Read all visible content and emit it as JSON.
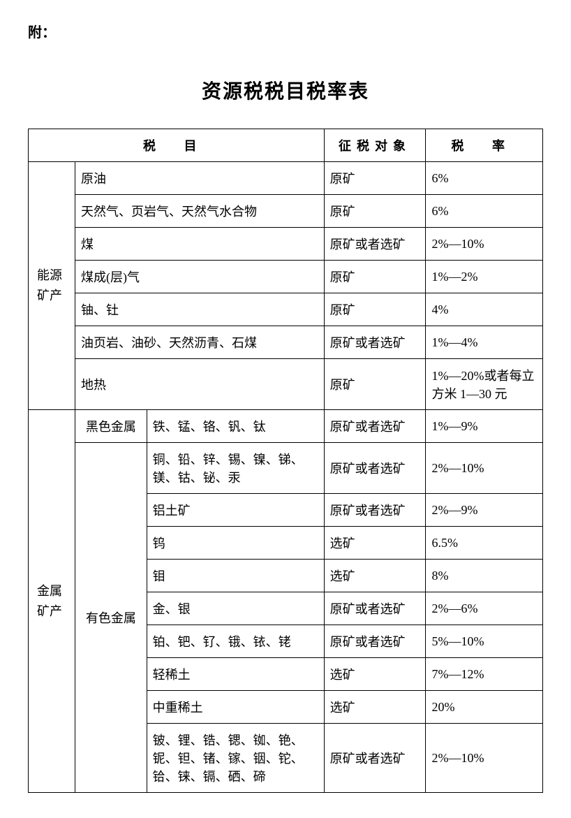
{
  "attachment_label": "附：",
  "title": "资源税税目税率表",
  "headers": {
    "item": "税 目",
    "object": "征税对象",
    "rate": "税 率"
  },
  "categories": {
    "energy": "能源矿产",
    "metal": "金属矿产",
    "black_metal": "黑色金属",
    "nonferrous_metal": "有色金属"
  },
  "rows": {
    "r1": {
      "item": "原油",
      "obj": "原矿",
      "rate": "6%"
    },
    "r2": {
      "item": "天然气、页岩气、天然气水合物",
      "obj": "原矿",
      "rate": "6%"
    },
    "r3": {
      "item": "煤",
      "obj": "原矿或者选矿",
      "rate": "2%—10%"
    },
    "r4": {
      "item": "煤成(层)气",
      "obj": "原矿",
      "rate": "1%—2%"
    },
    "r5": {
      "item": "铀、钍",
      "obj": "原矿",
      "rate": "4%"
    },
    "r6": {
      "item": "油页岩、油砂、天然沥青、石煤",
      "obj": "原矿或者选矿",
      "rate": "1%—4%"
    },
    "r7": {
      "item": "地热",
      "obj": "原矿",
      "rate": "1%—20%或者每立方米 1—30 元"
    },
    "r8": {
      "item": "铁、锰、铬、钒、钛",
      "obj": "原矿或者选矿",
      "rate": "1%—9%"
    },
    "r9": {
      "item": "铜、铅、锌、锡、镍、锑、镁、钴、铋、汞",
      "obj": "原矿或者选矿",
      "rate": "2%—10%"
    },
    "r10": {
      "item": "铝土矿",
      "obj": "原矿或者选矿",
      "rate": "2%—9%"
    },
    "r11": {
      "item": "钨",
      "obj": "选矿",
      "rate": "6.5%"
    },
    "r12": {
      "item": "钼",
      "obj": "选矿",
      "rate": "8%"
    },
    "r13": {
      "item": "金、银",
      "obj": "原矿或者选矿",
      "rate": "2%—6%"
    },
    "r14": {
      "item": "铂、钯、钌、锇、铱、铑",
      "obj": "原矿或者选矿",
      "rate": "5%—10%"
    },
    "r15": {
      "item": "轻稀土",
      "obj": "选矿",
      "rate": "7%—12%"
    },
    "r16": {
      "item": "中重稀土",
      "obj": "选矿",
      "rate": "20%"
    },
    "r17": {
      "item": "铍、锂、锆、锶、铷、铯、铌、钽、锗、镓、铟、铊、铪、铼、镉、硒、碲",
      "obj": "原矿或者选矿",
      "rate": "2%—10%"
    }
  }
}
